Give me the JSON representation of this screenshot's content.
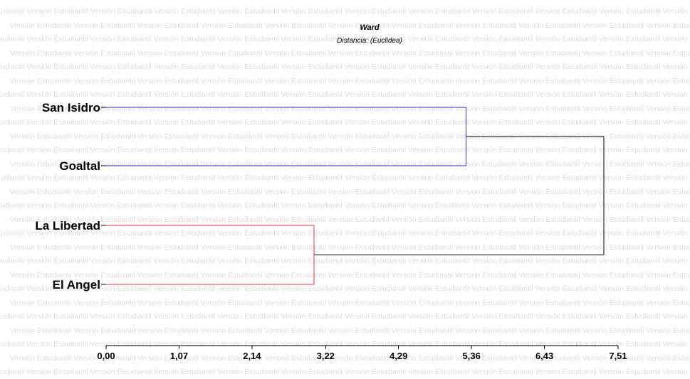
{
  "watermark": {
    "text": "Versión Estudiantil"
  },
  "chart_data": {
    "type": "dendrogram",
    "title": "Ward",
    "subtitle": "Distancia: (Euclidea)",
    "xlim": [
      0,
      7.51
    ],
    "ticks": [
      "0,00",
      "1,07",
      "2,14",
      "3,22",
      "4,29",
      "5,36",
      "6,43",
      "7,51"
    ],
    "tick_values": [
      0,
      1.07,
      2.14,
      3.22,
      4.29,
      5.36,
      6.43,
      7.51
    ],
    "leaves": [
      "San Isidro",
      "Goaltal",
      "La Libertad",
      "El Angel"
    ],
    "merges": [
      {
        "a": "San Isidro",
        "b": "Goaltal",
        "height": 5.28,
        "color": "#3333cc"
      },
      {
        "a": "La Libertad",
        "b": "El Angel",
        "height": 3.05,
        "color": "#e53333"
      },
      {
        "a": "San Isidro + Goaltal",
        "b": "La Libertad + El Angel",
        "height": 7.3,
        "color": "#000000"
      }
    ]
  }
}
